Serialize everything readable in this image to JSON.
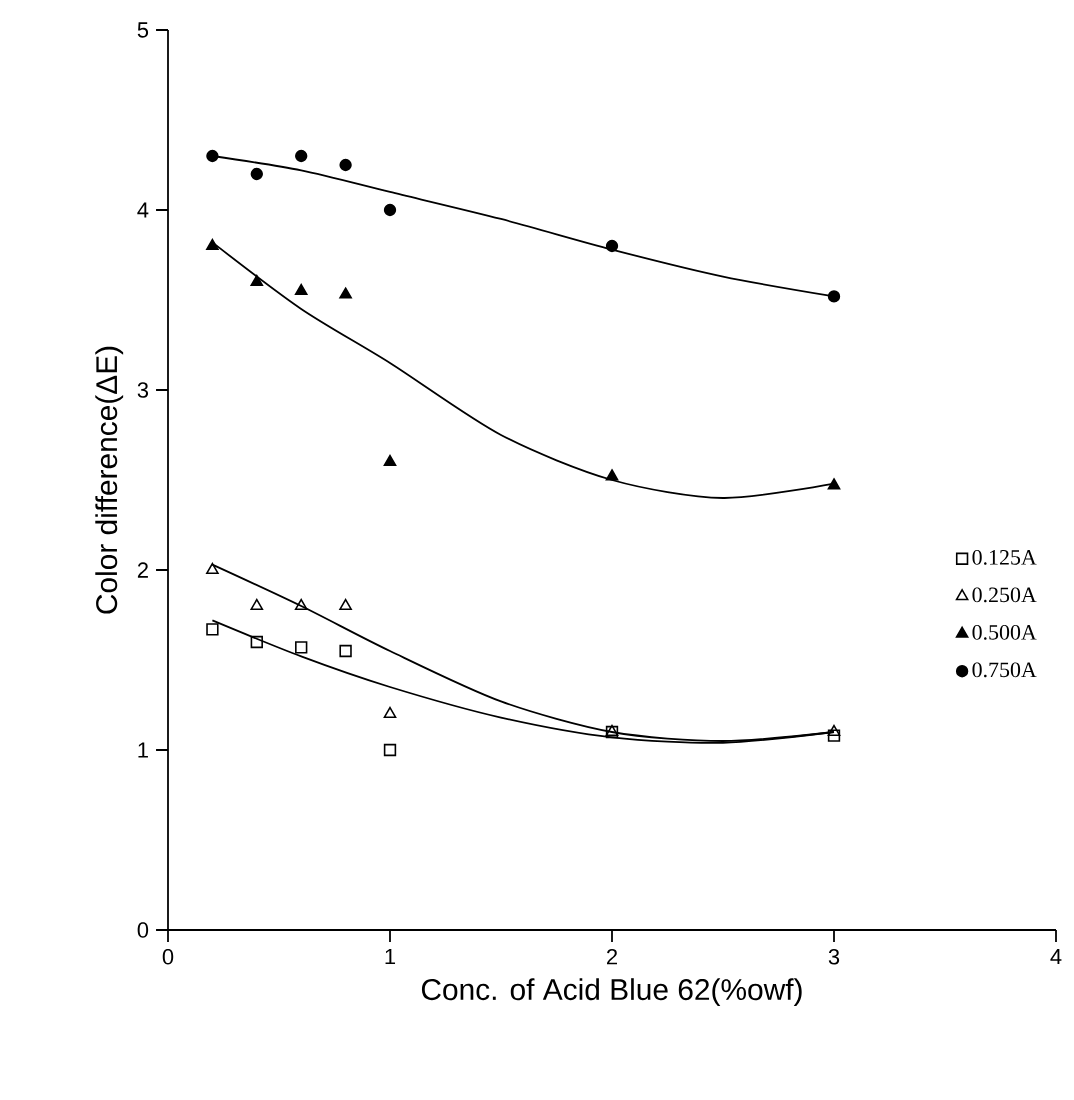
{
  "chart_data": {
    "type": "scatter",
    "xlabel": "Conc. of Acid Blue 62(%owf)",
    "ylabel": "Color difference(ΔE)",
    "xlim": [
      0,
      4
    ],
    "ylim": [
      0,
      5
    ],
    "xticks": [
      0,
      1,
      2,
      3,
      4
    ],
    "yticks": [
      0,
      1,
      2,
      3,
      4,
      5
    ],
    "grid": false,
    "legend": "right",
    "series": [
      {
        "name": "0.125A",
        "marker": "square",
        "color": "#000000",
        "x": [
          0.2,
          0.4,
          0.6,
          0.8,
          1,
          2,
          3
        ],
        "values": [
          1.67,
          1.6,
          1.57,
          1.55,
          1.0,
          1.1,
          1.08
        ]
      },
      {
        "name": "0.250A",
        "marker": "triangle",
        "color": "#000000",
        "x": [
          0.2,
          0.4,
          0.6,
          0.8,
          1,
          2,
          3
        ],
        "values": [
          2.0,
          1.8,
          1.8,
          1.8,
          1.2,
          1.1,
          1.1
        ]
      },
      {
        "name": "0.500A",
        "marker": "triangle",
        "color": "#000000",
        "x": [
          0.2,
          0.4,
          0.6,
          0.8,
          1,
          2,
          3
        ],
        "values": [
          3.8,
          3.6,
          3.55,
          3.53,
          2.6,
          2.52,
          2.47
        ]
      },
      {
        "name": "0.750A",
        "marker": "circle",
        "color": "#000000",
        "x": [
          0.2,
          0.4,
          0.6,
          0.8,
          1,
          2,
          3
        ],
        "values": [
          4.3,
          4.2,
          4.3,
          4.25,
          4.0,
          3.8,
          3.52
        ]
      },
      {
        "type": "line",
        "marker": "none",
        "color": "#000000",
        "x": [
          0.2,
          0.6,
          1,
          1.5,
          2,
          2.5,
          3
        ],
        "values": [
          1.72,
          1.52,
          1.35,
          1.18,
          1.07,
          1.04,
          1.1
        ]
      },
      {
        "type": "line",
        "marker": "none",
        "color": "#000000",
        "x": [
          0.2,
          0.6,
          1,
          1.5,
          2,
          2.5,
          3
        ],
        "values": [
          2.03,
          1.8,
          1.55,
          1.27,
          1.1,
          1.05,
          1.1
        ]
      },
      {
        "type": "line",
        "marker": "none",
        "color": "#000000",
        "x": [
          0.2,
          0.6,
          1,
          1.5,
          2,
          2.5,
          3
        ],
        "values": [
          3.82,
          3.45,
          3.15,
          2.75,
          2.5,
          2.4,
          2.48
        ]
      },
      {
        "type": "line",
        "marker": "none",
        "color": "#000000",
        "x": [
          0.2,
          0.6,
          1,
          1.5,
          2,
          2.5,
          3
        ],
        "values": [
          4.3,
          4.22,
          4.1,
          3.95,
          3.78,
          3.63,
          3.52
        ]
      }
    ]
  }
}
